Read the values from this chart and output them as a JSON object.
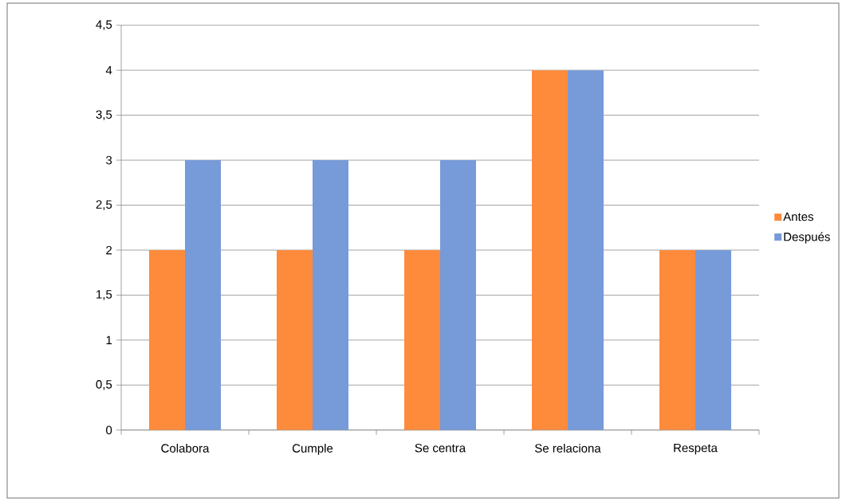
{
  "chart_data": {
    "type": "bar",
    "categories": [
      "Colabora",
      "Cumple",
      "Se centra",
      "Se relaciona",
      "Respeta"
    ],
    "series": [
      {
        "name": "Antes",
        "color": "#fe8b3b",
        "values": [
          2,
          2,
          2,
          4,
          2
        ]
      },
      {
        "name": "Después",
        "color": "#779ad9",
        "values": [
          3,
          3,
          3,
          4,
          2
        ]
      }
    ],
    "ylim": [
      0,
      4.5
    ],
    "yticks": [
      0,
      {
        "value": 0.5,
        "label": "0,5"
      },
      1,
      {
        "value": 1.5,
        "label": "1,5"
      },
      2,
      {
        "value": 2.5,
        "label": "2,5"
      },
      3,
      {
        "value": 3.5,
        "label": "3,5"
      },
      4,
      {
        "value": 4.5,
        "label": "4,5"
      }
    ],
    "grid": "y",
    "legend": "right"
  }
}
